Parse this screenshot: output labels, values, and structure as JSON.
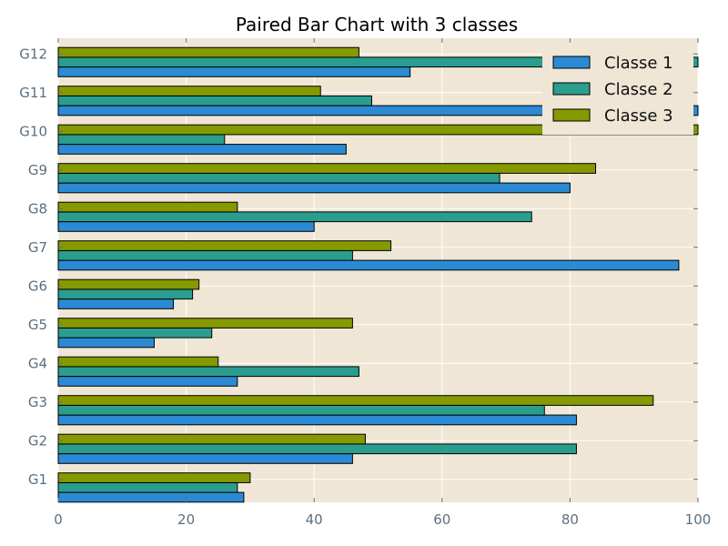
{
  "chart_data": {
    "type": "bar",
    "orientation": "horizontal",
    "title": "Paired Bar Chart with 3 classes",
    "xlabel": "",
    "ylabel": "",
    "xlim": [
      0,
      100
    ],
    "x_ticks": [
      "0",
      "20",
      "40",
      "60",
      "80",
      "100"
    ],
    "categories": [
      "G1",
      "G2",
      "G3",
      "G4",
      "G5",
      "G6",
      "G7",
      "G8",
      "G9",
      "G10",
      "G11",
      "G12"
    ],
    "series": [
      {
        "name": "Classe 1",
        "color": "#2b8ad3",
        "values": [
          29,
          46,
          81,
          28,
          15,
          18,
          97,
          40,
          80,
          45,
          100,
          55
        ]
      },
      {
        "name": "Classe 2",
        "color": "#2a9d8f",
        "values": [
          28,
          81,
          76,
          47,
          24,
          21,
          46,
          74,
          69,
          26,
          49,
          100
        ]
      },
      {
        "name": "Classe 3",
        "color": "#869a00",
        "values": [
          30,
          48,
          93,
          25,
          46,
          22,
          52,
          28,
          84,
          100,
          41,
          47
        ]
      }
    ],
    "legend_position": "top-right",
    "background": "#efe6d5",
    "grid": true
  }
}
